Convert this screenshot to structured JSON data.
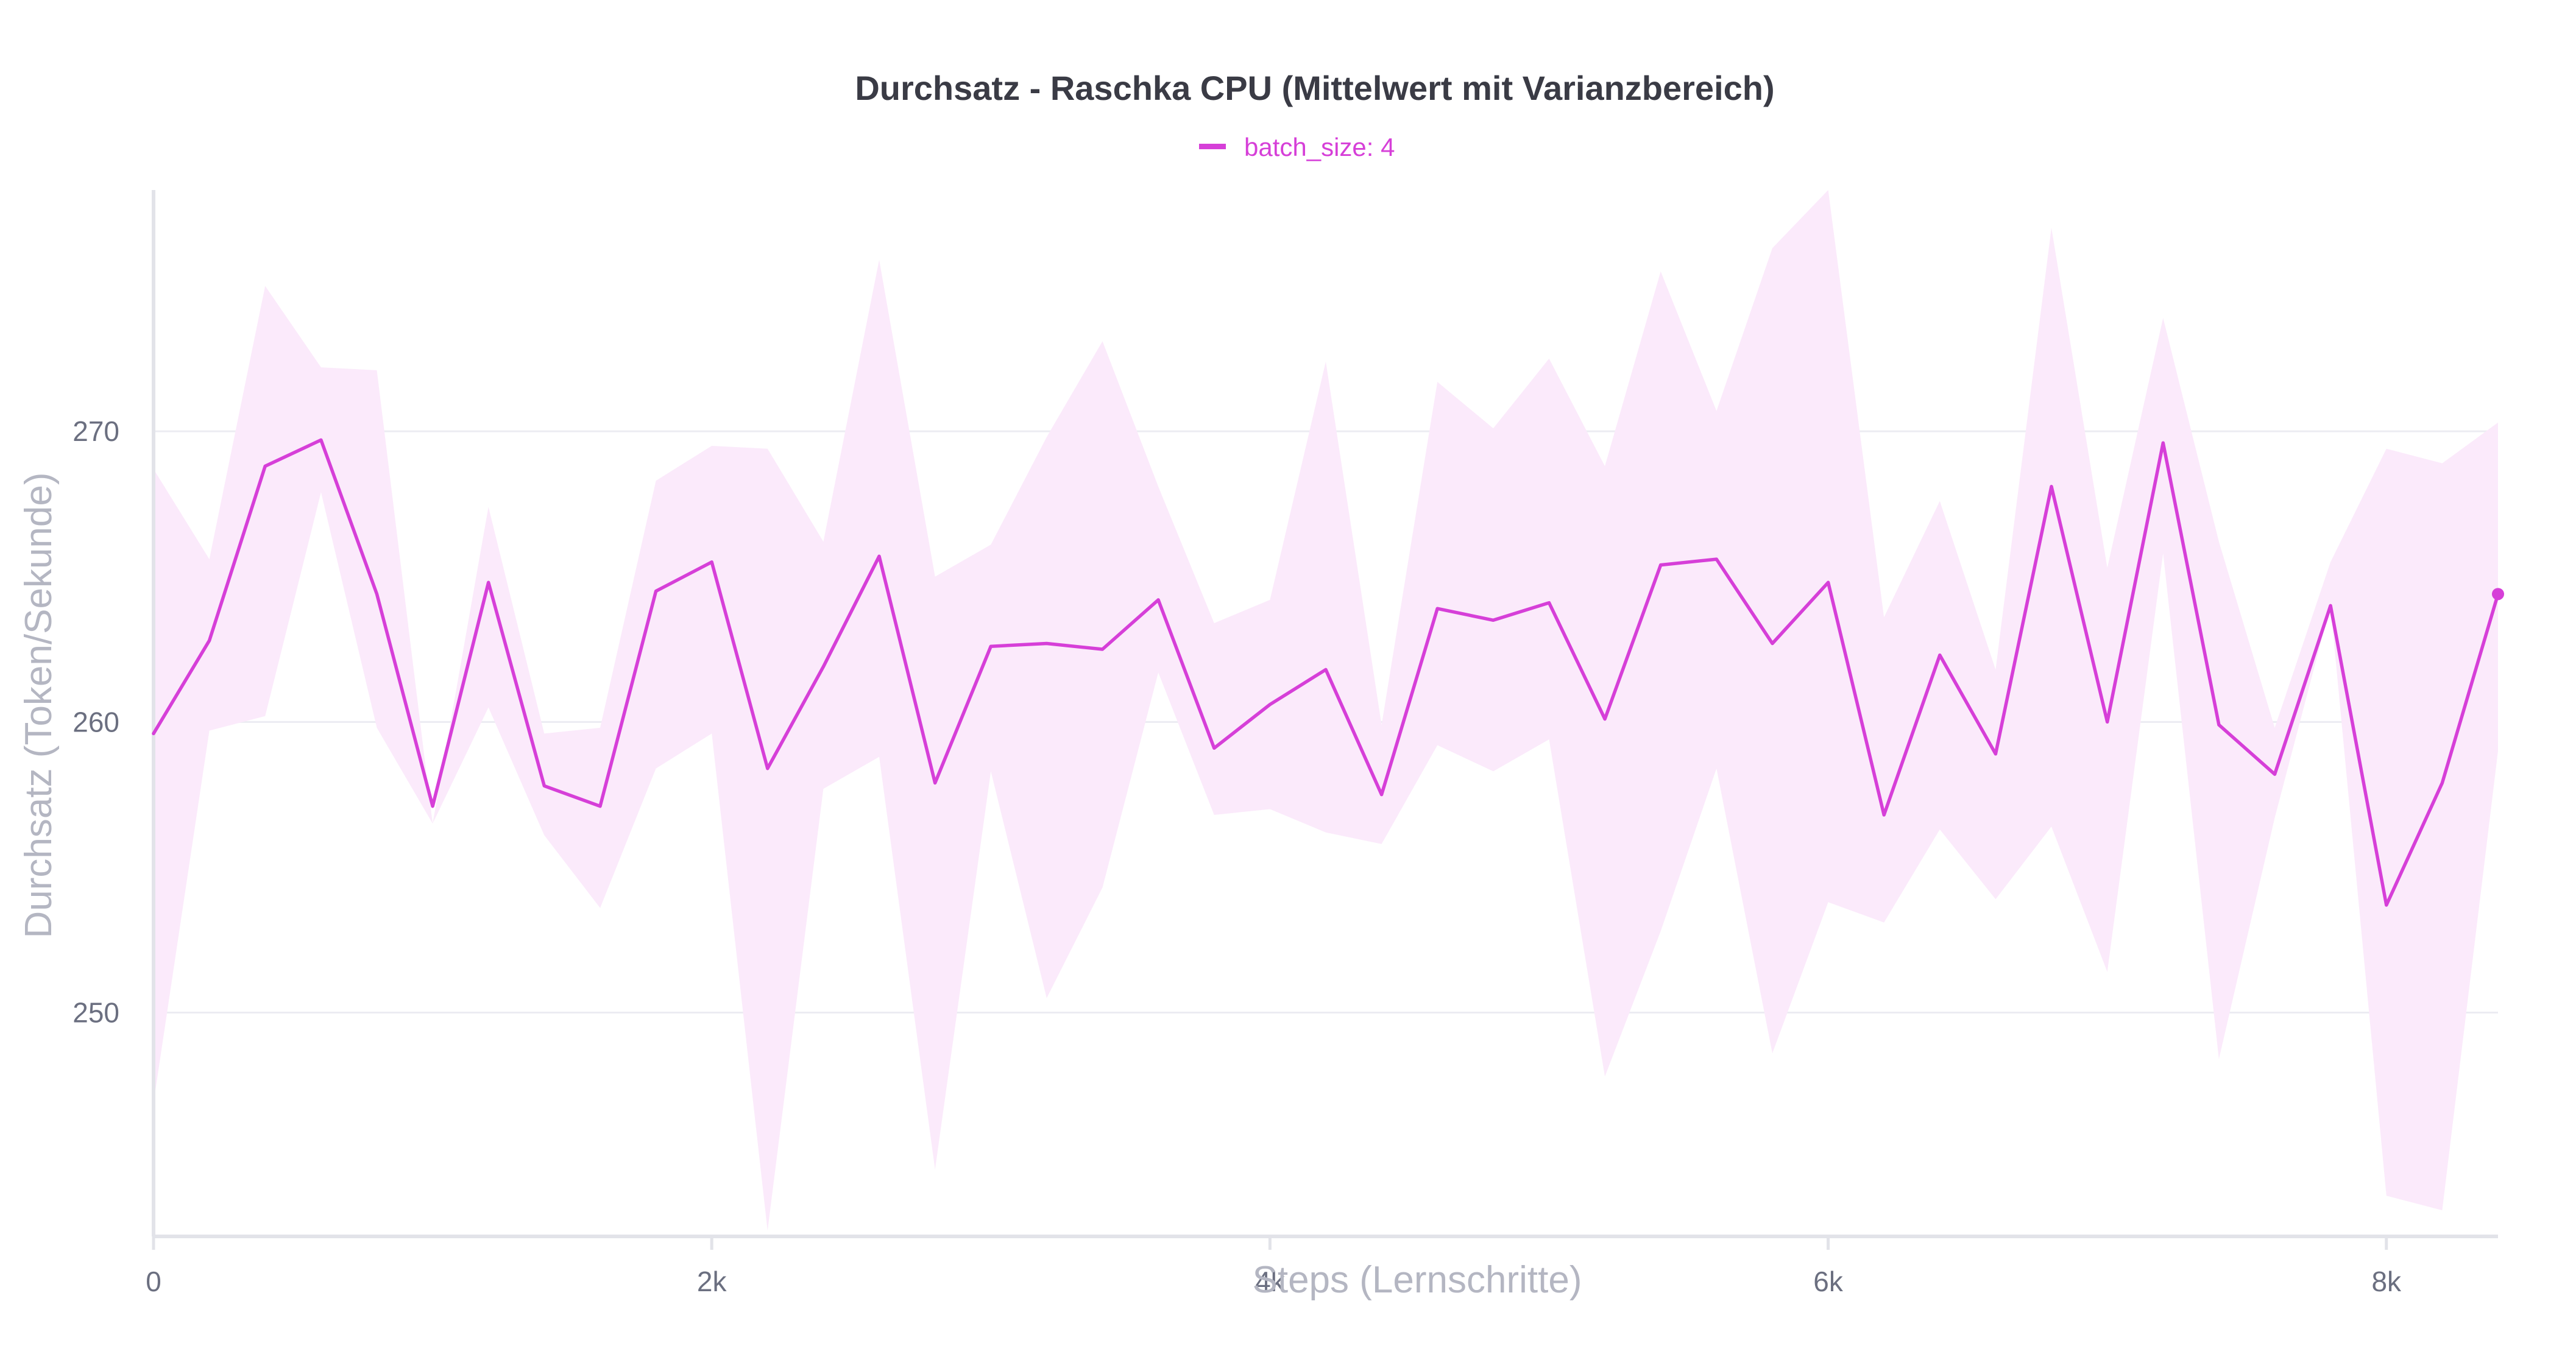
{
  "chart_data": {
    "type": "line",
    "title": "Durchsatz - Raschka CPU (Mittelwert mit Varianzbereich)",
    "xlabel": "Steps (Lernschritte)",
    "ylabel": "Durchsatz (Token/Sekunde)",
    "xlim": [
      0,
      8400
    ],
    "ylim": [
      242.3,
      278.3
    ],
    "x_ticks": [
      0,
      2000,
      4000,
      6000,
      8000
    ],
    "x_tick_labels": [
      "0",
      "2k",
      "4k",
      "6k",
      "8k"
    ],
    "y_ticks": [
      250,
      260,
      270
    ],
    "y_tick_labels": [
      "250",
      "260",
      "270"
    ],
    "grid": true,
    "legend_position": "top-center",
    "series": [
      {
        "name": "batch_size: 4",
        "color": "#d63fd8",
        "band_color": "#fbeafb",
        "x": [
          0,
          200,
          400,
          600,
          800,
          1000,
          1200,
          1400,
          1600,
          1800,
          2000,
          2200,
          2400,
          2600,
          2800,
          3000,
          3200,
          3400,
          3600,
          3800,
          4000,
          4200,
          4400,
          4600,
          4800,
          5000,
          5200,
          5400,
          5600,
          5800,
          6000,
          6200,
          6400,
          6600,
          6800,
          7000,
          7200,
          7400,
          7600,
          7800,
          8000,
          8200,
          8400
        ],
        "y": [
          259.6,
          262.8,
          268.8,
          269.7,
          264.4,
          257.1,
          264.8,
          257.8,
          257.1,
          264.5,
          265.5,
          258.4,
          261.9,
          265.7,
          257.9,
          262.6,
          262.7,
          262.5,
          264.2,
          259.1,
          260.6,
          261.8,
          257.5,
          263.9,
          263.5,
          264.1,
          260.1,
          265.4,
          265.6,
          262.7,
          264.8,
          256.8,
          262.3,
          258.9,
          268.1,
          260.0,
          269.6,
          259.9,
          258.2,
          264.0,
          253.7,
          257.9,
          264.4
        ],
        "y_upper": [
          268.7,
          265.6,
          275.0,
          272.2,
          272.1,
          256.5,
          267.4,
          259.6,
          259.8,
          268.3,
          269.5,
          269.4,
          266.2,
          275.9,
          265.0,
          266.1,
          269.8,
          273.1,
          268.1,
          263.4,
          264.2,
          272.4,
          259.9,
          271.7,
          270.1,
          272.5,
          268.8,
          275.5,
          270.7,
          276.3,
          278.3,
          263.6,
          267.6,
          261.8,
          277.0,
          265.3,
          273.9,
          266.2,
          259.8,
          265.5,
          269.4,
          268.9,
          270.3
        ],
        "y_lower": [
          246.9,
          259.7,
          260.2,
          267.9,
          259.8,
          256.5,
          260.5,
          256.1,
          253.6,
          258.4,
          259.6,
          242.5,
          257.7,
          258.8,
          244.6,
          258.3,
          250.5,
          254.3,
          261.7,
          256.8,
          257.0,
          256.2,
          255.8,
          259.2,
          258.3,
          259.4,
          247.8,
          252.8,
          258.4,
          248.6,
          253.8,
          253.1,
          256.3,
          253.9,
          256.4,
          251.4,
          265.8,
          248.4,
          256.7,
          264.0,
          243.7,
          243.2,
          259.0
        ]
      }
    ]
  }
}
